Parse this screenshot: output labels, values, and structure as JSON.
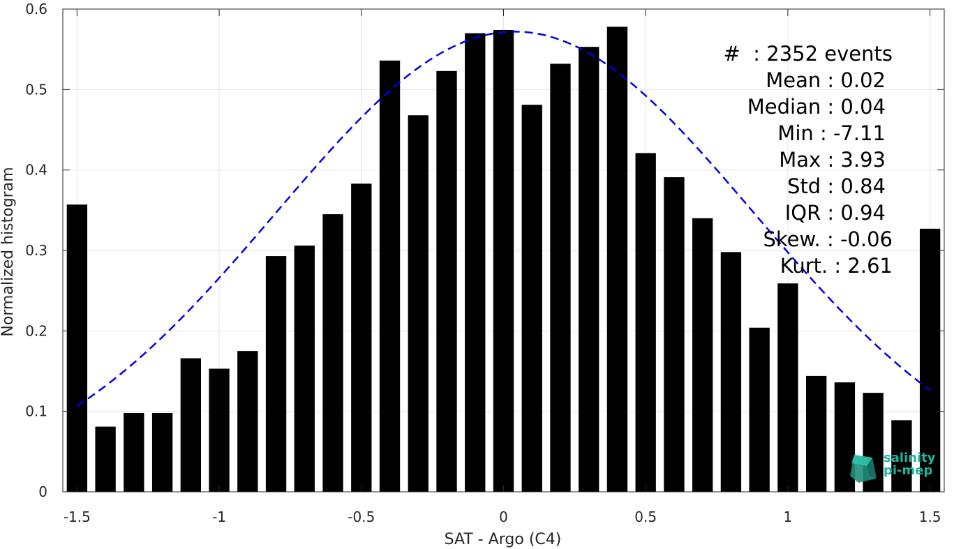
{
  "chart_data": {
    "type": "bar",
    "xlabel": "SAT - Argo (C4)",
    "ylabel": "Normalized histogram",
    "xlim": [
      -1.55,
      1.55
    ],
    "ylim": [
      0,
      0.6
    ],
    "xticks": [
      -1.5,
      -1,
      -0.5,
      0,
      0.5,
      1,
      1.5
    ],
    "xtick_labels": [
      "-1.5",
      "-1",
      "-0.5",
      "0",
      "0.5",
      "1",
      "1.5"
    ],
    "yticks": [
      0,
      0.1,
      0.2,
      0.3,
      0.4,
      0.5,
      0.6
    ],
    "ytick_labels": [
      "0",
      "0.1",
      "0.2",
      "0.3",
      "0.4",
      "0.5",
      "0.6"
    ],
    "grid": true,
    "bar_color": "#000000",
    "bin_width": 0.1,
    "bars": [
      {
        "x": -1.5,
        "value": 0.357
      },
      {
        "x": -1.4,
        "value": 0.081
      },
      {
        "x": -1.3,
        "value": 0.098
      },
      {
        "x": -1.2,
        "value": 0.098
      },
      {
        "x": -1.1,
        "value": 0.166
      },
      {
        "x": -1.0,
        "value": 0.153
      },
      {
        "x": -0.9,
        "value": 0.175
      },
      {
        "x": -0.8,
        "value": 0.293
      },
      {
        "x": -0.7,
        "value": 0.306
      },
      {
        "x": -0.6,
        "value": 0.345
      },
      {
        "x": -0.5,
        "value": 0.383
      },
      {
        "x": -0.4,
        "value": 0.536
      },
      {
        "x": -0.3,
        "value": 0.468
      },
      {
        "x": -0.2,
        "value": 0.523
      },
      {
        "x": -0.1,
        "value": 0.57
      },
      {
        "x": 0.0,
        "value": 0.574
      },
      {
        "x": 0.1,
        "value": 0.481
      },
      {
        "x": 0.2,
        "value": 0.532
      },
      {
        "x": 0.3,
        "value": 0.553
      },
      {
        "x": 0.4,
        "value": 0.578
      },
      {
        "x": 0.5,
        "value": 0.421
      },
      {
        "x": 0.6,
        "value": 0.391
      },
      {
        "x": 0.7,
        "value": 0.34
      },
      {
        "x": 0.8,
        "value": 0.298
      },
      {
        "x": 0.9,
        "value": 0.204
      },
      {
        "x": 1.0,
        "value": 0.259
      },
      {
        "x": 1.1,
        "value": 0.144
      },
      {
        "x": 1.2,
        "value": 0.136
      },
      {
        "x": 1.3,
        "value": 0.123
      },
      {
        "x": 1.4,
        "value": 0.089
      },
      {
        "x": 1.5,
        "value": 0.327
      }
    ],
    "fit_curve": {
      "style": "dashed",
      "color": "#0000ee",
      "mean": 0.04,
      "std": 0.84,
      "peak": 0.572,
      "x_range": [
        -1.5,
        1.5
      ]
    }
  },
  "stats": {
    "lines": [
      "#  : 2352 events",
      "Mean : 0.02",
      "Median : 0.04",
      "Min : -7.11",
      "Max : 3.93",
      "Std : 0.84",
      "IQR : 0.94",
      "Skew. : -0.06",
      "Kurt. : 2.61"
    ]
  },
  "logo": {
    "line1": "salinity",
    "line2": "pi-mep",
    "color": "#1fb5a0"
  }
}
